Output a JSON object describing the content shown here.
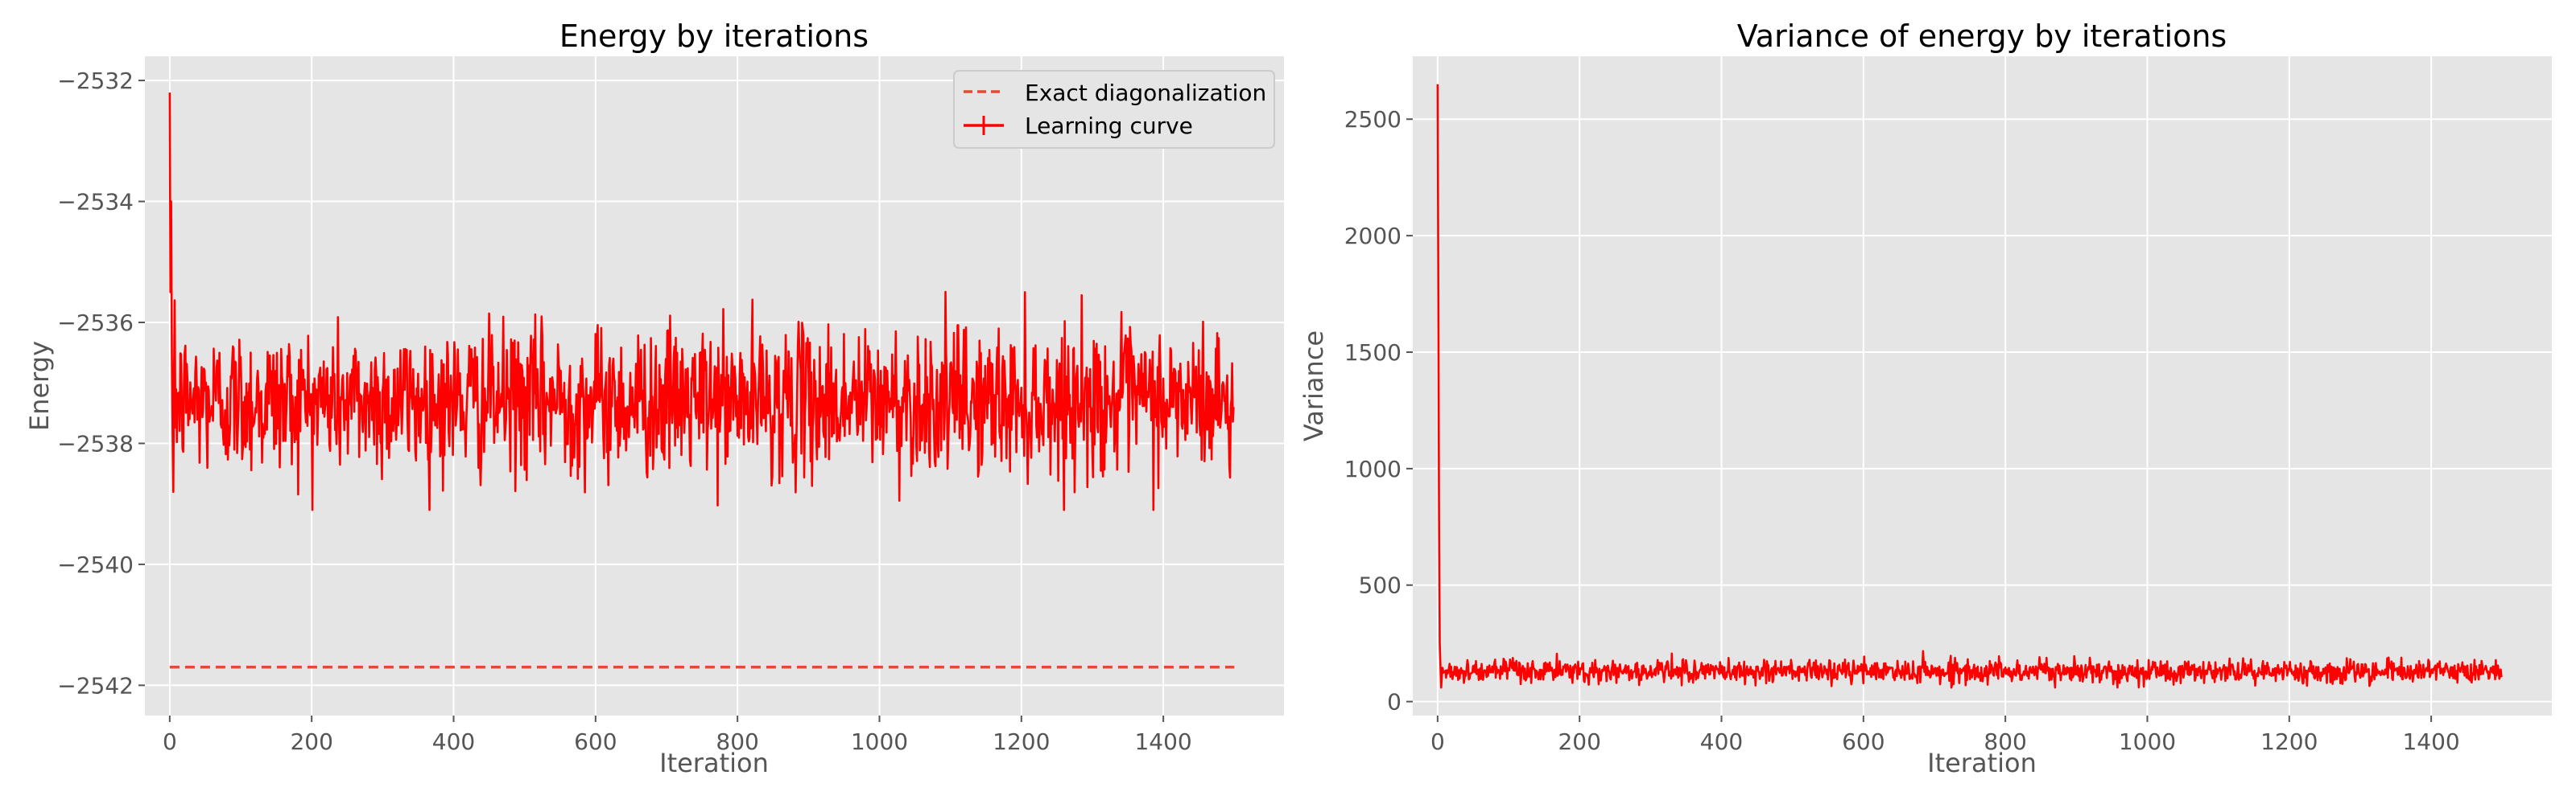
{
  "colors": {
    "plot_background": "#e5e5e5",
    "grid": "#ffffff",
    "learning_curve": "#ff0000",
    "exact_line": "#e24a33",
    "text": "#555555",
    "title": "#000000"
  },
  "chart_data": [
    {
      "type": "line",
      "title": "Energy by iterations",
      "xlabel": "Iteration",
      "ylabel": "Energy",
      "xlim": [
        -35,
        1570
      ],
      "ylim": [
        -2542.5,
        -2531.6
      ],
      "xticks": [
        0,
        200,
        400,
        600,
        800,
        1000,
        1200,
        1400
      ],
      "yticks": [
        -2542,
        -2540,
        -2538,
        -2536,
        -2534,
        -2532
      ],
      "ytick_labels": [
        "−2542",
        "−2540",
        "−2538",
        "−2536",
        "−2534",
        "−2532"
      ],
      "grid": true,
      "legend_position": "top-right",
      "legend": [
        "Exact diagonalization",
        "Learning curve"
      ],
      "series": [
        {
          "name": "Exact diagonalization",
          "style": "dashed",
          "x": [
            0,
            1500
          ],
          "y": [
            -2541.7,
            -2541.7
          ]
        },
        {
          "name": "Learning curve",
          "style": "solid-with-errorbars",
          "initial_points": [
            [
              0,
              -2532.2
            ],
            [
              1,
              -2535.5
            ],
            [
              2,
              -2534.0
            ],
            [
              3,
              -2536.5
            ],
            [
              4,
              -2537.8
            ],
            [
              5,
              -2538.8
            ],
            [
              6,
              -2537.0
            ]
          ],
          "iterations": 1500,
          "steady_state_mean": -2537.3,
          "steady_state_range": [
            -2539.1,
            -2535.2
          ],
          "final_value": -2537.4
        }
      ]
    },
    {
      "type": "line",
      "title": "Variance of energy by iterations",
      "xlabel": "Iteration",
      "ylabel": "Variance",
      "xlim": [
        -35,
        1570
      ],
      "ylim": [
        -60,
        2770
      ],
      "xticks": [
        0,
        200,
        400,
        600,
        800,
        1000,
        1200,
        1400
      ],
      "yticks": [
        0,
        500,
        1000,
        1500,
        2000,
        2500
      ],
      "ytick_labels": [
        "0",
        "500",
        "1000",
        "1500",
        "2000",
        "2500"
      ],
      "grid": true,
      "series": [
        {
          "name": "Variance",
          "initial_points": [
            [
              0,
              2650
            ],
            [
              1,
              1800
            ],
            [
              2,
              800
            ],
            [
              3,
              250
            ],
            [
              4,
              150
            ],
            [
              5,
              60
            ],
            [
              6,
              110
            ]
          ],
          "iterations": 1500,
          "steady_state_mean": 130,
          "steady_state_range": [
            60,
            220
          ],
          "final_value": 105
        }
      ]
    }
  ]
}
